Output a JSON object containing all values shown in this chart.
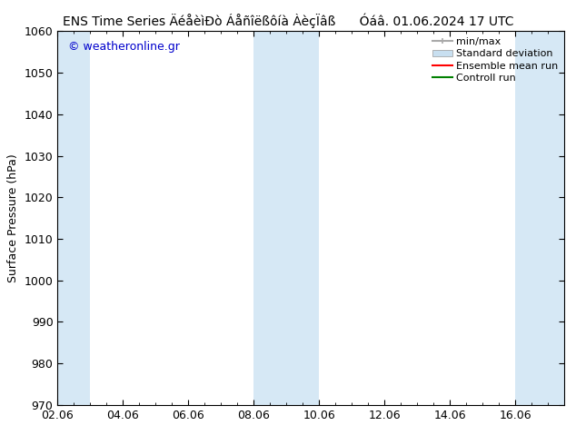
{
  "title_left": "ENS Time Series ÄéåèìÐò Áåñîëßôíà ÀèçÏâß",
  "title_right": "Óáâ. 01.06.2024 17 UTC",
  "ylabel": "Surface Pressure (hPa)",
  "ylim": [
    970,
    1060
  ],
  "yticks": [
    970,
    980,
    990,
    1000,
    1010,
    1020,
    1030,
    1040,
    1050,
    1060
  ],
  "xlim_start": 0.0,
  "xlim_end": 15.5,
  "xtick_labels": [
    "02.06",
    "04.06",
    "06.06",
    "08.06",
    "10.06",
    "12.06",
    "14.06",
    "16.06"
  ],
  "xtick_positions": [
    0,
    2,
    4,
    6,
    8,
    10,
    12,
    14
  ],
  "watermark": "© weatheronline.gr",
  "bg_color": "#ffffff",
  "plot_bg_color": "#ffffff",
  "shaded_bands": [
    {
      "x_start": 0.0,
      "x_end": 1.0,
      "color": "#d6e8f5"
    },
    {
      "x_start": 6.0,
      "x_end": 8.0,
      "color": "#d6e8f5"
    },
    {
      "x_start": 14.0,
      "x_end": 15.5,
      "color": "#d6e8f5"
    }
  ],
  "legend_entries": [
    {
      "label": "min/max",
      "color": "#aaaaaa",
      "lw": 1.5
    },
    {
      "label": "Standard deviation",
      "color": "#c8dff0",
      "lw": 8
    },
    {
      "label": "Ensemble mean run",
      "color": "#ff0000",
      "lw": 1.5
    },
    {
      "label": "Controll run",
      "color": "#008000",
      "lw": 1.5
    }
  ],
  "title_fontsize": 10,
  "axis_label_fontsize": 9,
  "tick_fontsize": 9,
  "legend_fontsize": 8,
  "watermark_color": "#0000cc",
  "watermark_fontsize": 9
}
